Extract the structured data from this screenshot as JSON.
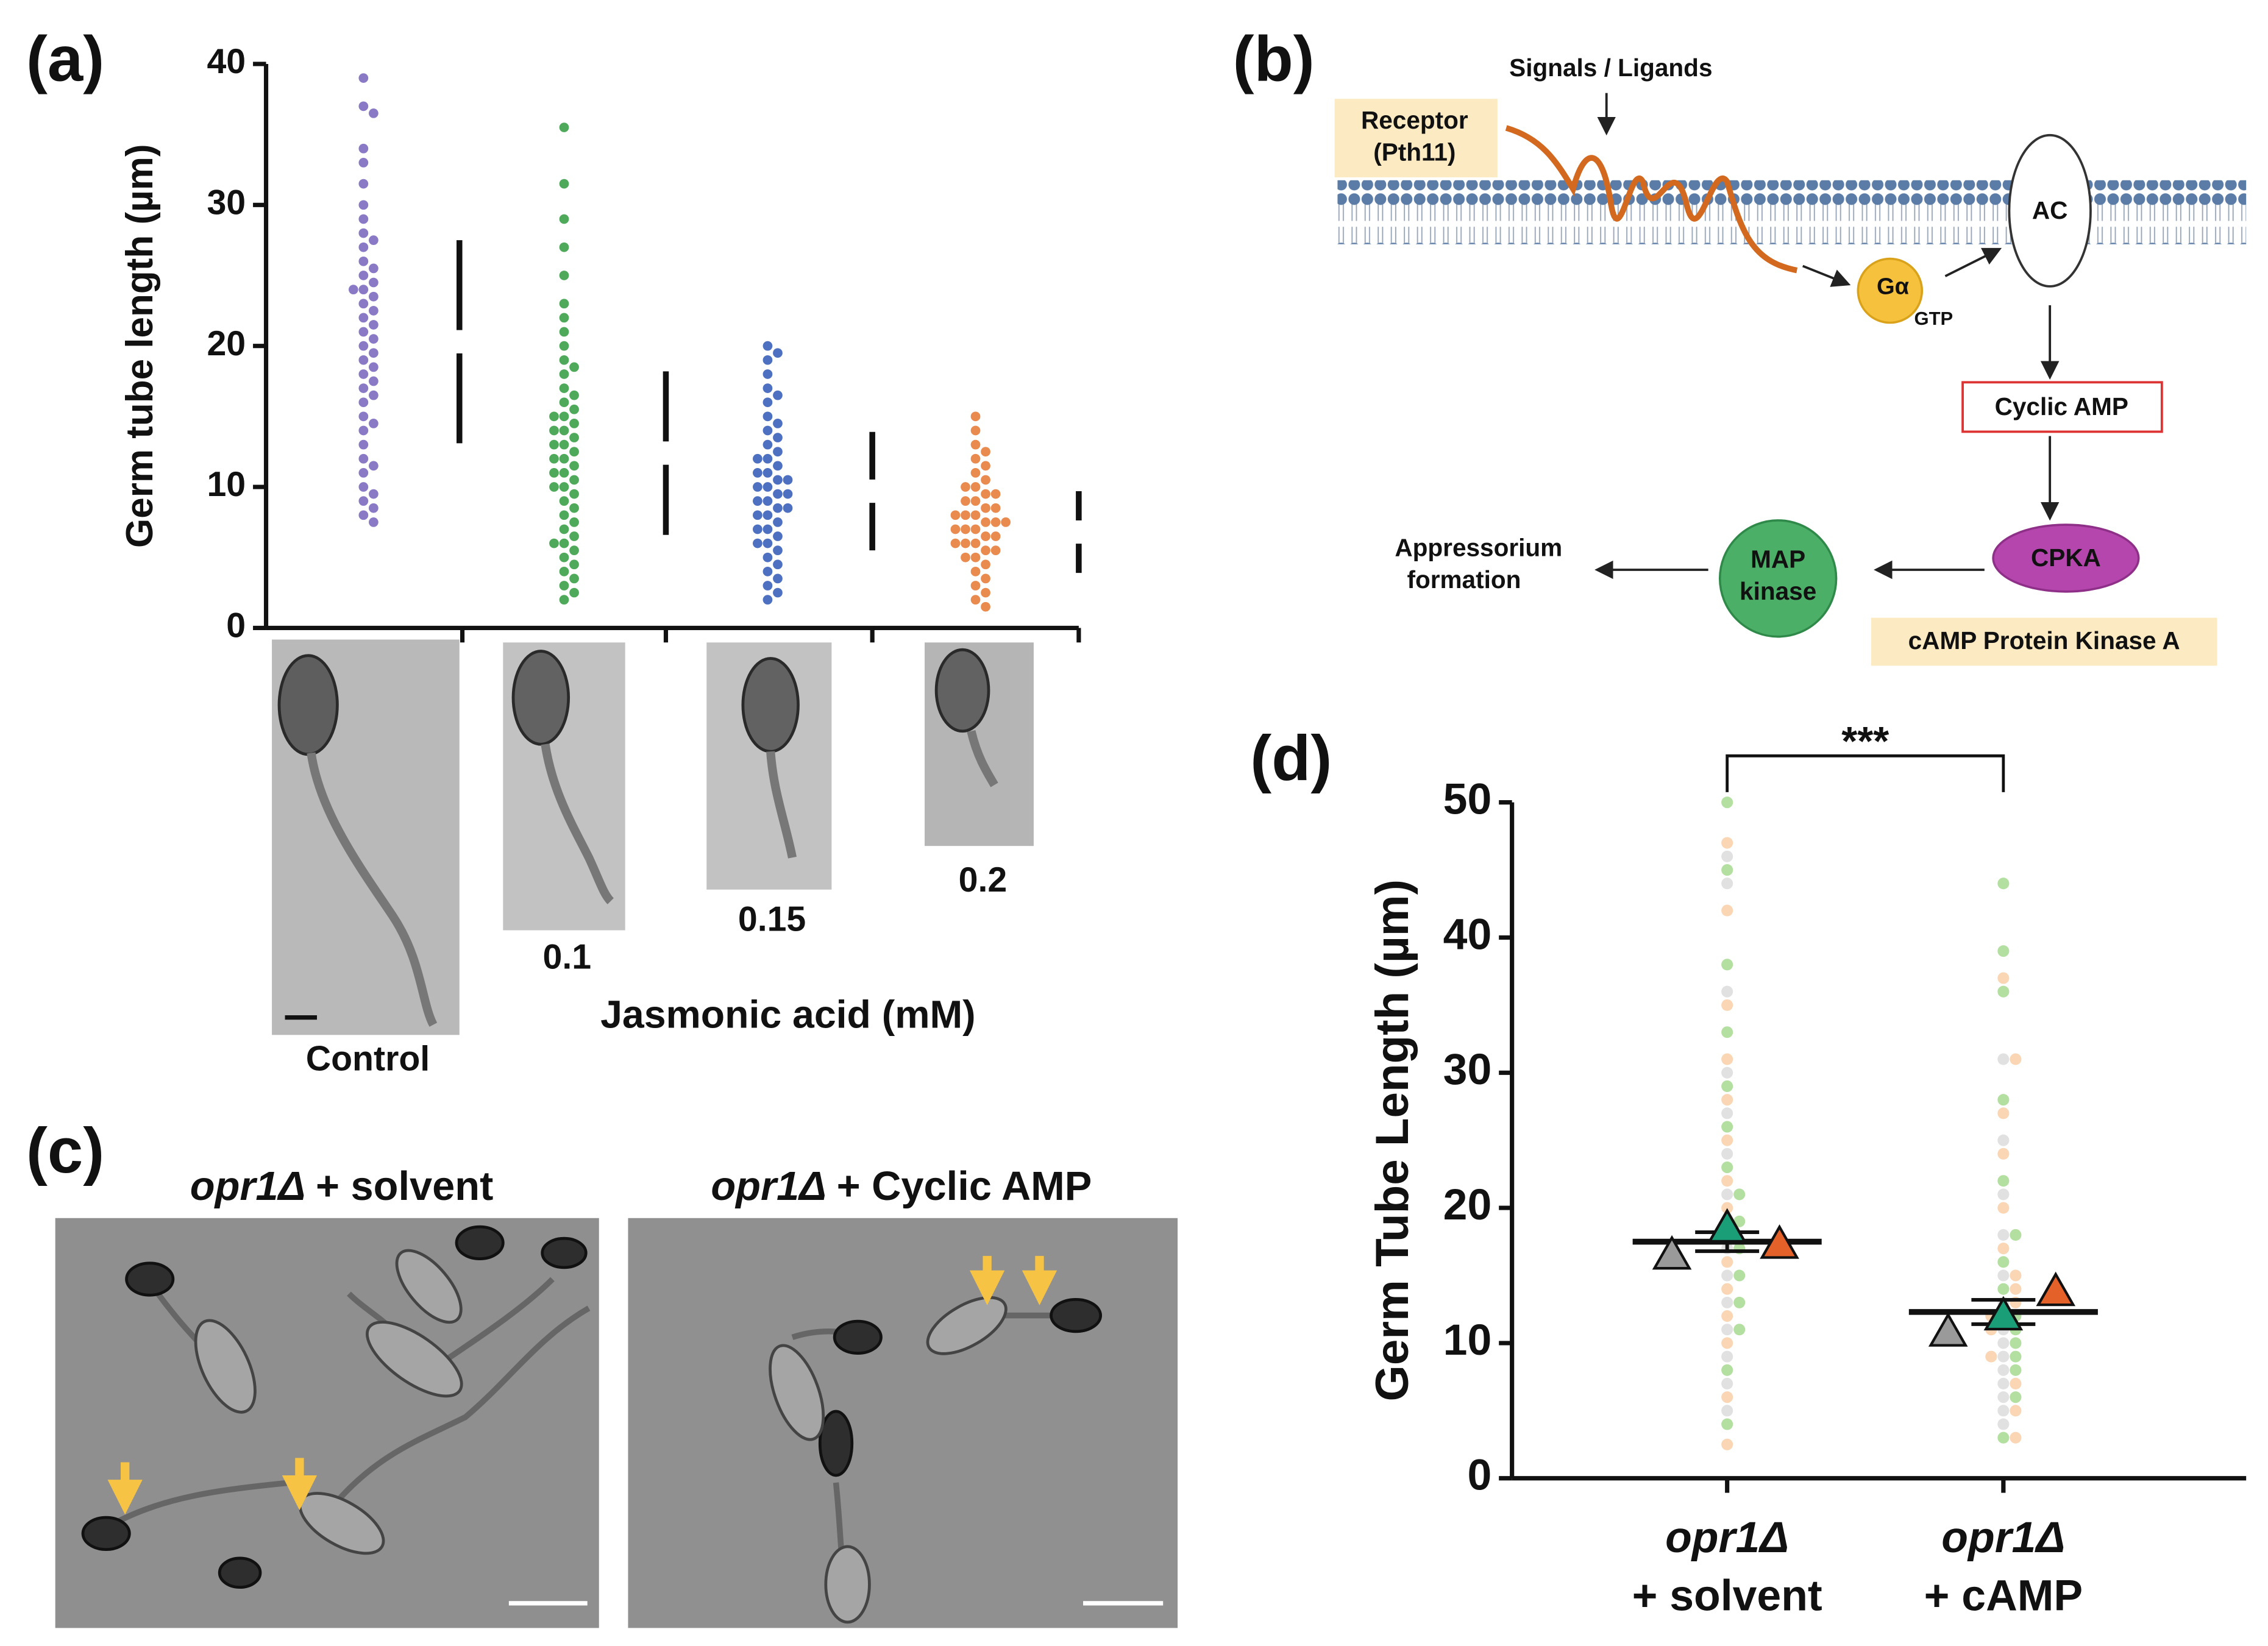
{
  "panels": [
    "(a)",
    "(b)",
    "(c)",
    "(d)"
  ],
  "chart_data": [
    {
      "type": "swarm",
      "ylabel": "Germ tube length (µm)",
      "xlabel": "Jasmonic acid (mM)",
      "categories": [
        "Control",
        "0.1",
        "0.15",
        "0.2"
      ],
      "colors": [
        "#8a7ac6",
        "#4fa95a",
        "#4e70c0",
        "#e98a4f"
      ],
      "values": [
        [
          39,
          37,
          36.5,
          34,
          33,
          31.5,
          30,
          29,
          28,
          27.5,
          27,
          26,
          25.5,
          25,
          24.5,
          24,
          24,
          23.5,
          23,
          22.5,
          22,
          21.5,
          21,
          20.5,
          20,
          19.5,
          19,
          18.5,
          18,
          17.5,
          17,
          16.5,
          16,
          15,
          14.5,
          14,
          13,
          12,
          11.5,
          11,
          10,
          9.5,
          9,
          8.5,
          8,
          7.5
        ],
        [
          35.5,
          31.5,
          29,
          27,
          25,
          23,
          22,
          21,
          20,
          19,
          18.5,
          18,
          17,
          16.5,
          16,
          15.5,
          15,
          15,
          14.5,
          14,
          14,
          13.5,
          13,
          13,
          12.5,
          12,
          12,
          11.5,
          11,
          11,
          10.5,
          10,
          10,
          9.5,
          9,
          8.5,
          8,
          7.5,
          7,
          6.5,
          6,
          6,
          5.5,
          5,
          4.5,
          4,
          3.5,
          3,
          2.5,
          2
        ],
        [
          20,
          19.5,
          19,
          18,
          17,
          16.5,
          16,
          15,
          14.5,
          14,
          13.5,
          13,
          12.5,
          12,
          12,
          11.5,
          11,
          11,
          10.5,
          10.5,
          10,
          10,
          9.5,
          9.5,
          9,
          9,
          8.5,
          8.5,
          8,
          8,
          7.5,
          7,
          7,
          6.5,
          6,
          6,
          5.5,
          5,
          4.5,
          4,
          3.5,
          3,
          2.5,
          2
        ],
        [
          15,
          14,
          13,
          12.5,
          12,
          11.5,
          11,
          10.5,
          10,
          10,
          9.5,
          9.5,
          9,
          9,
          8.5,
          8.5,
          8,
          8,
          8,
          7.5,
          7.5,
          7.5,
          7,
          7,
          7,
          6.5,
          6.5,
          6,
          6,
          6,
          5.5,
          5.5,
          5,
          5,
          4.5,
          4,
          3.5,
          3,
          2.5,
          2,
          1.5
        ]
      ],
      "mean": [
        20.3,
        12.4,
        9.7,
        6.8
      ],
      "sd": [
        7.2,
        5.8,
        4.2,
        2.9
      ],
      "ylim": [
        0,
        40
      ],
      "yticks": [
        0,
        10,
        20,
        30,
        40
      ]
    },
    {
      "type": "superplot",
      "ylabel": "Germ Tube Length (µm)",
      "categories": [
        [
          "opr1Δ",
          "+ solvent"
        ],
        [
          "opr1Δ",
          "+ cAMP"
        ]
      ],
      "series": [
        {
          "color": "#9a9a9a",
          "point_color": "#dcdcdc",
          "mean": [
            16.5,
            10.8
          ],
          "values": [
            [
              46,
              44,
              36,
              30,
              27,
              24,
              21,
              19,
              17,
              15,
              13,
              11,
              9,
              7,
              5
            ],
            [
              31,
              25,
              21,
              18,
              15,
              13,
              12,
              11,
              10,
              9,
              8,
              7,
              6,
              5,
              4
            ]
          ]
        },
        {
          "color": "#1a9e77",
          "point_color": "#a6d98f",
          "mean": [
            18.5,
            12.0
          ],
          "values": [
            [
              50,
              45,
              38,
              33,
              29,
              26,
              23,
              21,
              19,
              17,
              15,
              13,
              11,
              8,
              4
            ],
            [
              44,
              39,
              36,
              28,
              22,
              18,
              16,
              14,
              12,
              11,
              10,
              9,
              8,
              6,
              3
            ]
          ]
        },
        {
          "color": "#e4622a",
          "point_color": "#f9cfa8",
          "mean": [
            17.3,
            13.8
          ],
          "values": [
            [
              47,
              42,
              35,
              31,
              28,
              25,
              22,
              20,
              18,
              16,
              14,
              12,
              10,
              6,
              2.5
            ],
            [
              37,
              31,
              27,
              24,
              20,
              17,
              15,
              14,
              13,
              12,
              11,
              9,
              7,
              5,
              3
            ]
          ]
        }
      ],
      "mean": [
        17.5,
        12.3
      ],
      "sem": [
        0.7,
        0.9
      ],
      "significance": "***",
      "ylim": [
        0,
        50
      ],
      "yticks": [
        0,
        10,
        20,
        30,
        40,
        50
      ]
    }
  ],
  "diagram": {
    "signals": "Signals / Ligands",
    "receptor": [
      "Receptor",
      "(Pth11)"
    ],
    "ac": "AC",
    "g_alpha": "Gα",
    "gtp": "GTP",
    "cyclic_amp": "Cyclic AMP",
    "cpka": "CPKA",
    "map_kinase": [
      "MAP",
      "kinase"
    ],
    "output": [
      "Appressorium",
      "formation"
    ],
    "cpka_label": "cAMP Protein Kinase A"
  },
  "micrographs": {
    "titles": [
      {
        "strain": "opr1Δ",
        "treatment": "+ solvent"
      },
      {
        "strain": "opr1Δ",
        "treatment": "+ Cyclic AMP"
      }
    ]
  }
}
